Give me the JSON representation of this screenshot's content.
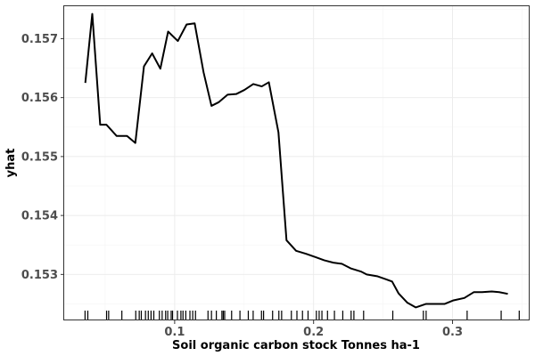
{
  "chart_data": {
    "type": "line",
    "title": "",
    "xlabel": "Soil organic carbon stock Tonnes ha-1",
    "ylabel": "yhat",
    "xlim": [
      0.0205,
      0.3555
    ],
    "ylim": [
      0.15222,
      0.15755
    ],
    "x_ticks": [
      {
        "value": 0.1,
        "label": "0.1"
      },
      {
        "value": 0.2,
        "label": "0.2"
      },
      {
        "value": 0.3,
        "label": "0.3"
      }
    ],
    "y_ticks": [
      {
        "value": 0.153,
        "label": "0.153"
      },
      {
        "value": 0.154,
        "label": "0.154"
      },
      {
        "value": 0.155,
        "label": "0.155"
      },
      {
        "value": 0.156,
        "label": "0.156"
      },
      {
        "value": 0.157,
        "label": "0.157"
      }
    ],
    "grid": true,
    "series": [
      {
        "color": "#000000",
        "x": [
          0.0357,
          0.0407,
          0.0464,
          0.0509,
          0.0582,
          0.0657,
          0.0717,
          0.0779,
          0.0838,
          0.0897,
          0.0953,
          0.1023,
          0.1086,
          0.1144,
          0.1208,
          0.1265,
          0.1316,
          0.1381,
          0.1443,
          0.1502,
          0.1566,
          0.1627,
          0.1678,
          0.1747,
          0.1805,
          0.1874,
          0.1946,
          0.2019,
          0.2076,
          0.2142,
          0.2203,
          0.227,
          0.234,
          0.2382,
          0.2457,
          0.2519,
          0.2565,
          0.2611,
          0.2675,
          0.2735,
          0.281,
          0.2889,
          0.2944,
          0.3007,
          0.3085,
          0.3154,
          0.3212,
          0.3282,
          0.3336,
          0.3398
        ],
        "y": [
          0.15625,
          0.15742,
          0.15554,
          0.15554,
          0.15535,
          0.15535,
          0.15523,
          0.15653,
          0.15675,
          0.15649,
          0.15712,
          0.15696,
          0.15724,
          0.15726,
          0.15643,
          0.15586,
          0.15592,
          0.15605,
          0.15606,
          0.15613,
          0.15623,
          0.15619,
          0.15626,
          0.15541,
          0.15358,
          0.1534,
          0.15335,
          0.15329,
          0.15324,
          0.1532,
          0.15318,
          0.1531,
          0.15305,
          0.153,
          0.15297,
          0.15292,
          0.15288,
          0.15268,
          0.15252,
          0.15244,
          0.1525,
          0.1525,
          0.1525,
          0.15256,
          0.1526,
          0.1527,
          0.1527,
          0.15271,
          0.1527,
          0.15267
        ]
      }
    ],
    "rug_x": [
      0.0355,
      0.0375,
      0.051,
      0.0525,
      0.062,
      0.072,
      0.0745,
      0.076,
      0.079,
      0.081,
      0.083,
      0.085,
      0.089,
      0.091,
      0.0935,
      0.095,
      0.0975,
      0.0985,
      0.102,
      0.1045,
      0.106,
      0.108,
      0.111,
      0.113,
      0.115,
      0.124,
      0.1265,
      0.13,
      0.134,
      0.135,
      0.136,
      0.141,
      0.147,
      0.153,
      0.1565,
      0.1625,
      0.164,
      0.1705,
      0.175,
      0.177,
      0.184,
      0.188,
      0.192,
      0.196,
      0.202,
      0.204,
      0.206,
      0.21,
      0.215,
      0.221,
      0.227,
      0.229,
      0.236,
      0.257,
      0.279,
      0.281,
      0.3105,
      0.335,
      0.348
    ]
  }
}
